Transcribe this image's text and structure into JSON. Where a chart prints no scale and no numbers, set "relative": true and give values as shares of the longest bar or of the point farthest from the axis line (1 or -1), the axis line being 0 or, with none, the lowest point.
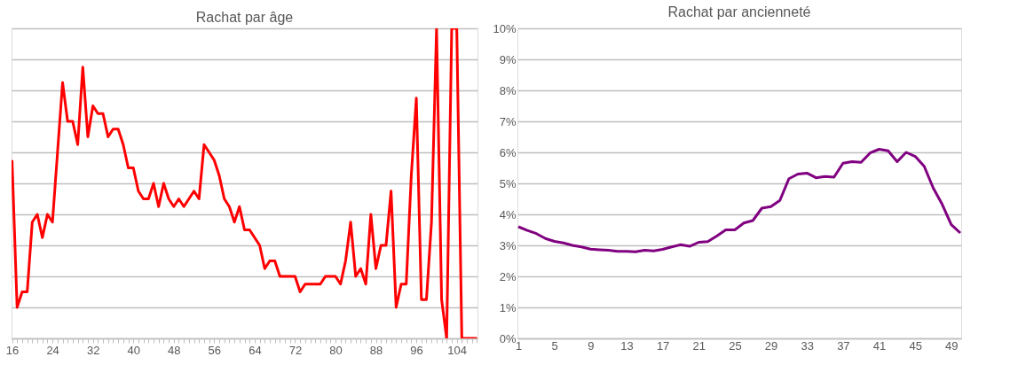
{
  "chart_data": [
    {
      "type": "line",
      "title": "Rachat par âge",
      "relative": true,
      "grid": "y",
      "tick_labels": "x",
      "categories": [
        "16",
        null,
        null,
        null,
        null,
        null,
        null,
        null,
        "24",
        null,
        null,
        null,
        null,
        null,
        null,
        null,
        "32",
        null,
        null,
        null,
        null,
        null,
        null,
        null,
        "40",
        null,
        null,
        null,
        null,
        null,
        null,
        null,
        "48",
        null,
        null,
        null,
        null,
        null,
        null,
        null,
        "56",
        null,
        null,
        null,
        null,
        null,
        null,
        null,
        "64",
        null,
        null,
        null,
        null,
        null,
        null,
        null,
        "72",
        null,
        null,
        null,
        null,
        null,
        null,
        null,
        "80",
        null,
        null,
        null,
        null,
        null,
        null,
        null,
        "88",
        null,
        null,
        null,
        null,
        null,
        null,
        null,
        "96",
        null,
        null,
        null,
        null,
        null,
        null,
        null,
        "104",
        null,
        null,
        null,
        null
      ],
      "series": [
        {
          "color": "#ff0000",
          "values": [
            0.575,
            0.1,
            0.15,
            0.15,
            0.375,
            0.4,
            0.325,
            0.4,
            0.375,
            0.6,
            0.825,
            0.7,
            0.7,
            0.625,
            0.875,
            0.65,
            0.75,
            0.725,
            0.725,
            0.65,
            0.675,
            0.675,
            0.625,
            0.55,
            0.55,
            0.475,
            0.45,
            0.45,
            0.5,
            0.425,
            0.5,
            0.45,
            0.425,
            0.45,
            0.425,
            0.45,
            0.475,
            0.45,
            0.625,
            0.6,
            0.575,
            0.525,
            0.45,
            0.425,
            0.375,
            0.425,
            0.35,
            0.35,
            0.325,
            0.3,
            0.225,
            0.25,
            0.25,
            0.2,
            0.2,
            0.2,
            0.2,
            0.15,
            0.175,
            0.175,
            0.175,
            0.175,
            0.2,
            0.2,
            0.2,
            0.175,
            0.25,
            0.375,
            0.2,
            0.225,
            0.175,
            0.4,
            0.225,
            0.3,
            0.3,
            0.475,
            0.1,
            0.175,
            0.175,
            0.525,
            0.775,
            0.125,
            0.125,
            0.375,
            1,
            0.125,
            0,
            1,
            1,
            0,
            0,
            0,
            0
          ]
        }
      ]
    },
    {
      "type": "line",
      "title": "Rachat par ancienneté",
      "grid": "y",
      "categories": [
        "1",
        null,
        null,
        null,
        "5",
        null,
        null,
        null,
        "9",
        null,
        null,
        null,
        "13",
        null,
        null,
        null,
        "17",
        null,
        null,
        null,
        "21",
        null,
        null,
        null,
        "25",
        null,
        null,
        null,
        "29",
        null,
        null,
        null,
        "33",
        null,
        null,
        null,
        "37",
        null,
        null,
        null,
        "41",
        null,
        null,
        null,
        "45",
        null,
        null,
        null,
        "49",
        null
      ],
      "ylim": [
        0,
        10
      ],
      "yticks": [
        {
          "value": 0,
          "label": "0%"
        },
        {
          "value": 1,
          "label": "1%"
        },
        {
          "value": 2,
          "label": "2%"
        },
        {
          "value": 3,
          "label": "3%"
        },
        {
          "value": 4,
          "label": "4%"
        },
        {
          "value": 5,
          "label": "5%"
        },
        {
          "value": 6,
          "label": "6%"
        },
        {
          "value": 7,
          "label": "7%"
        },
        {
          "value": 8,
          "label": "8%"
        },
        {
          "value": 9,
          "label": "9%"
        },
        {
          "value": 10,
          "label": "10%"
        }
      ],
      "series": [
        {
          "color": "#800080",
          "values": [
            3.6,
            3.48,
            3.38,
            3.22,
            3.13,
            3.08,
            3.0,
            2.95,
            2.88,
            2.86,
            2.84,
            2.81,
            2.81,
            2.79,
            2.84,
            2.82,
            2.87,
            2.95,
            3.02,
            2.97,
            3.1,
            3.12,
            3.3,
            3.5,
            3.5,
            3.72,
            3.8,
            4.2,
            4.25,
            4.45,
            5.15,
            5.3,
            5.33,
            5.18,
            5.22,
            5.2,
            5.65,
            5.7,
            5.68,
            5.98,
            6.1,
            6.05,
            5.7,
            6.0,
            5.87,
            5.55,
            4.85,
            4.32,
            3.67,
            3.4
          ]
        }
      ]
    }
  ]
}
